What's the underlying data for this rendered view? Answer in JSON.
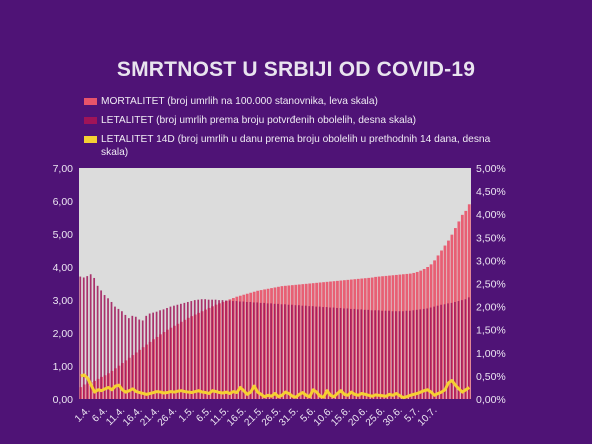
{
  "chart_data": {
    "type": "bar+line",
    "title": "SMRTNOST U SRBIJI OD COVID-19",
    "legend": [
      {
        "key": "mortalitet",
        "label": "MORTALITET (broj umrlih na 100.000 stanovnika, leva skala)",
        "color": "#e8546a"
      },
      {
        "key": "letalitet",
        "label": "LETALITET (broj umrlih prema broju potvrđenih obolelih, desna skala)",
        "color": "#a01458"
      },
      {
        "key": "letalitet14",
        "label": "LETALITET 14D (broj umrlih u danu prema broju obolelih u prethodnih 14 dana, desna skala)",
        "color": "#f5d033"
      }
    ],
    "legend_position": "top",
    "x_tick_labels": [
      "1.4.",
      "6.4.",
      "11.4.",
      "16.4.",
      "21.4.",
      "26.4.",
      "1.5.",
      "6.5.",
      "11.5.",
      "16.5.",
      "21.5.",
      "26.5.",
      "31.5.",
      "5.6.",
      "10.6.",
      "15.6.",
      "20.6.",
      "25.6.",
      "30.6.",
      "5.7.",
      "10.7."
    ],
    "x_range": [
      "1.4.",
      "13.7."
    ],
    "left_axis": {
      "ylim": [
        0,
        7
      ],
      "ticks": [
        "0,00",
        "1,00",
        "2,00",
        "3,00",
        "4,00",
        "5,00",
        "6,00",
        "7,00"
      ]
    },
    "right_axis": {
      "ylim": [
        0,
        5
      ],
      "ticks": [
        "0,00%",
        "0,50%",
        "1,00%",
        "1,50%",
        "2,00%",
        "2,50%",
        "3,00%",
        "3,50%",
        "4,00%",
        "4,50%",
        "5,00%"
      ]
    },
    "grid": false,
    "series": [
      {
        "key": "mortalitet",
        "axis": "left",
        "style": "bar",
        "values": [
          0.36,
          0.44,
          0.47,
          0.51,
          0.55,
          0.61,
          0.67,
          0.72,
          0.78,
          0.85,
          0.93,
          1.01,
          1.09,
          1.17,
          1.25,
          1.33,
          1.41,
          1.49,
          1.57,
          1.65,
          1.73,
          1.81,
          1.88,
          1.96,
          2.03,
          2.1,
          2.16,
          2.22,
          2.28,
          2.34,
          2.4,
          2.46,
          2.51,
          2.56,
          2.61,
          2.66,
          2.71,
          2.76,
          2.81,
          2.86,
          2.9,
          2.94,
          2.98,
          3.02,
          3.06,
          3.1,
          3.13,
          3.16,
          3.19,
          3.22,
          3.25,
          3.28,
          3.3,
          3.32,
          3.34,
          3.36,
          3.38,
          3.4,
          3.42,
          3.43,
          3.44,
          3.45,
          3.46,
          3.47,
          3.48,
          3.49,
          3.5,
          3.51,
          3.52,
          3.53,
          3.54,
          3.55,
          3.56,
          3.57,
          3.58,
          3.59,
          3.6,
          3.61,
          3.62,
          3.63,
          3.64,
          3.65,
          3.66,
          3.67,
          3.68,
          3.7,
          3.71,
          3.72,
          3.73,
          3.74,
          3.75,
          3.76,
          3.77,
          3.78,
          3.79,
          3.8,
          3.82,
          3.85,
          3.89,
          3.94,
          4.0,
          4.08,
          4.2,
          4.35,
          4.5,
          4.65,
          4.8,
          4.98,
          5.18,
          5.38,
          5.58,
          5.7,
          5.9
        ]
      },
      {
        "key": "letalitet",
        "axis": "right",
        "style": "bar",
        "values": [
          2.65,
          2.63,
          2.66,
          2.7,
          2.62,
          2.45,
          2.35,
          2.25,
          2.18,
          2.1,
          2.0,
          1.95,
          1.9,
          1.82,
          1.75,
          1.8,
          1.78,
          1.72,
          1.7,
          1.8,
          1.85,
          1.87,
          1.89,
          1.92,
          1.94,
          1.97,
          2.0,
          2.02,
          2.04,
          2.06,
          2.08,
          2.1,
          2.12,
          2.14,
          2.15,
          2.16,
          2.16,
          2.15,
          2.15,
          2.15,
          2.14,
          2.14,
          2.13,
          2.13,
          2.12,
          2.12,
          2.11,
          2.11,
          2.1,
          2.1,
          2.09,
          2.09,
          2.08,
          2.08,
          2.07,
          2.07,
          2.06,
          2.06,
          2.05,
          2.05,
          2.04,
          2.04,
          2.03,
          2.03,
          2.02,
          2.02,
          2.01,
          2.01,
          2.0,
          2.0,
          1.99,
          1.99,
          1.98,
          1.98,
          1.97,
          1.97,
          1.96,
          1.96,
          1.95,
          1.95,
          1.94,
          1.94,
          1.93,
          1.93,
          1.92,
          1.92,
          1.92,
          1.91,
          1.91,
          1.91,
          1.9,
          1.9,
          1.9,
          1.9,
          1.91,
          1.91,
          1.92,
          1.93,
          1.94,
          1.95,
          1.96,
          1.98,
          2.0,
          2.02,
          2.04,
          2.05,
          2.07,
          2.08,
          2.1,
          2.12,
          2.14,
          2.16,
          2.2
        ]
      },
      {
        "key": "letalitet14",
        "axis": "right",
        "style": "line",
        "values": [
          0.5,
          0.52,
          0.45,
          0.3,
          0.15,
          0.2,
          0.18,
          0.22,
          0.25,
          0.2,
          0.28,
          0.3,
          0.2,
          0.15,
          0.18,
          0.22,
          0.16,
          0.14,
          0.12,
          0.1,
          0.12,
          0.14,
          0.16,
          0.15,
          0.13,
          0.14,
          0.16,
          0.15,
          0.17,
          0.18,
          0.16,
          0.15,
          0.14,
          0.16,
          0.18,
          0.15,
          0.14,
          0.12,
          0.18,
          0.16,
          0.14,
          0.13,
          0.15,
          0.12,
          0.16,
          0.14,
          0.25,
          0.18,
          0.1,
          0.15,
          0.28,
          0.15,
          0.1,
          0.05,
          0.08,
          0.06,
          0.12,
          0.05,
          0.08,
          0.15,
          0.12,
          0.06,
          0.04,
          0.1,
          0.14,
          0.08,
          0.05,
          0.2,
          0.15,
          0.06,
          0.04,
          0.18,
          0.08,
          0.05,
          0.12,
          0.18,
          0.1,
          0.08,
          0.15,
          0.1,
          0.08,
          0.12,
          0.1,
          0.08,
          0.06,
          0.09,
          0.08,
          0.07,
          0.06,
          0.1,
          0.08,
          0.12,
          0.07,
          0.03,
          0.05,
          0.08,
          0.1,
          0.12,
          0.15,
          0.18,
          0.2,
          0.15,
          0.08,
          0.12,
          0.15,
          0.2,
          0.35,
          0.4,
          0.3,
          0.22,
          0.15,
          0.2,
          0.25
        ]
      }
    ]
  }
}
